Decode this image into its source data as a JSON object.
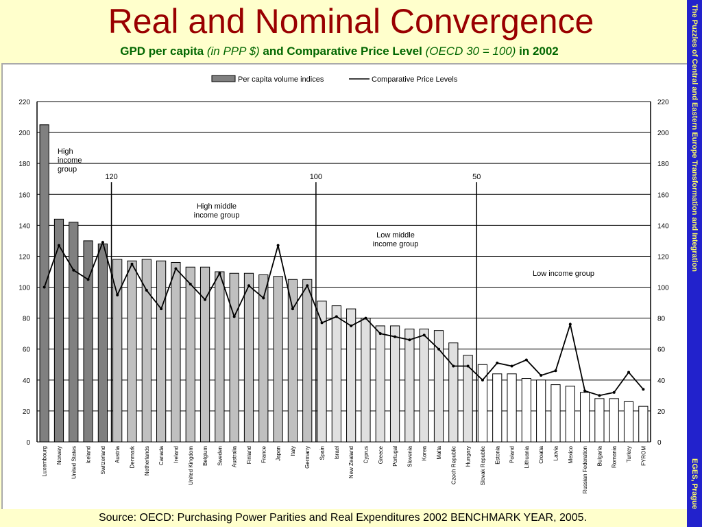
{
  "slide": {
    "title": "Real and Nominal Convergence",
    "subtitle_parts": [
      {
        "text": "GPD per capita ",
        "italic": false
      },
      {
        "text": "(in PPP $)",
        "italic": true
      },
      {
        "text": " and Comparative Price Level ",
        "italic": false
      },
      {
        "text": "(OECD 30 = 100)",
        "italic": true
      },
      {
        "text": " in 2002",
        "italic": false
      }
    ],
    "sidebar_top": "The Puzzles of Central and Eastern Europe Transformation and Integration",
    "sidebar_bottom": "EGES, Prague",
    "source": "Source: OECD: Purchasing Power Parities and Real Expenditures 2002 BENCHMARK YEAR, 2005."
  },
  "colors": {
    "background": "#ffffcc",
    "title": "#990000",
    "subtitle": "#006600",
    "sidebar": "#2222cc",
    "sidebar_text": "#ffff66",
    "bar_dark": "#808080",
    "bar_mid": "#c0c0c0",
    "bar_light": "#e0e0e0",
    "bar_white": "#ffffff",
    "line": "#000000"
  },
  "chart_data": {
    "type": "bar",
    "title": "",
    "xlabel": "",
    "ylabel": "",
    "ylim": [
      0,
      220
    ],
    "yticks": [
      0,
      20,
      40,
      60,
      80,
      100,
      120,
      140,
      160,
      180,
      200,
      220
    ],
    "grid": "horizontal",
    "legend_position": "top",
    "categories": [
      "Luxembourg",
      "Norway",
      "United States",
      "Iceland",
      "Switzerland",
      "Austria",
      "Denmark",
      "Netherlands",
      "Canada",
      "Ireland",
      "United Kingdom",
      "Belgium",
      "Sweden",
      "Australia",
      "Finland",
      "France",
      "Japan",
      "Italy",
      "Germany",
      "Spain",
      "Israel",
      "New Zealand",
      "Cyprus",
      "Greece",
      "Portugal",
      "Slovenia",
      "Korea",
      "Malta",
      "Czech Republic",
      "Hungary",
      "Slovak Republic",
      "Estonia",
      "Poland",
      "Lithuania",
      "Croatia",
      "Latvia",
      "Mexico",
      "Russian Federation",
      "Bulgaria",
      "Romania",
      "Turkey",
      "FYROM"
    ],
    "series": [
      {
        "name": "Per capita volume indices",
        "type": "bar",
        "values": [
          205,
          144,
          142,
          130,
          128,
          118,
          117,
          118,
          117,
          116,
          113,
          113,
          110,
          109,
          109,
          108,
          107,
          105,
          105,
          91,
          88,
          86,
          80,
          75,
          75,
          73,
          73,
          72,
          64,
          56,
          50,
          44,
          44,
          41,
          40,
          37,
          36,
          32,
          28,
          28,
          26,
          23
        ]
      },
      {
        "name": "Comparative Price Levels",
        "type": "line",
        "values": [
          100,
          127,
          111,
          105,
          129,
          95,
          115,
          98,
          86,
          112,
          102,
          92,
          109,
          81,
          101,
          93,
          127,
          86,
          101,
          77,
          81,
          75,
          80,
          70,
          68,
          66,
          69,
          60,
          49,
          49,
          40,
          51,
          49,
          53,
          43,
          46,
          76,
          33,
          30,
          32,
          45,
          34
        ]
      }
    ],
    "annotations": [
      {
        "text": "High income group",
        "lines": [
          "High",
          "income",
          "group"
        ]
      },
      {
        "text": "High middle income group",
        "lines": [
          "High middle",
          "income group"
        ]
      },
      {
        "text": "Low middle income group",
        "lines": [
          "Low middle",
          "income group"
        ]
      },
      {
        "text": "Low income group",
        "lines": [
          "Low income group"
        ]
      }
    ],
    "thresholds": [
      {
        "label": "120",
        "y": 168,
        "after_index": 4
      },
      {
        "label": "100",
        "y": 168,
        "after_index": 18
      },
      {
        "label": "50",
        "y": 168,
        "after_index": 29
      }
    ],
    "bar_shade_groups": [
      0,
      0,
      0,
      0,
      0,
      1,
      1,
      1,
      1,
      1,
      1,
      1,
      1,
      1,
      1,
      1,
      1,
      1,
      1,
      2,
      2,
      2,
      2,
      2,
      2,
      2,
      2,
      2,
      2,
      2,
      3,
      3,
      3,
      3,
      3,
      3,
      3,
      3,
      3,
      3,
      3,
      3
    ]
  }
}
